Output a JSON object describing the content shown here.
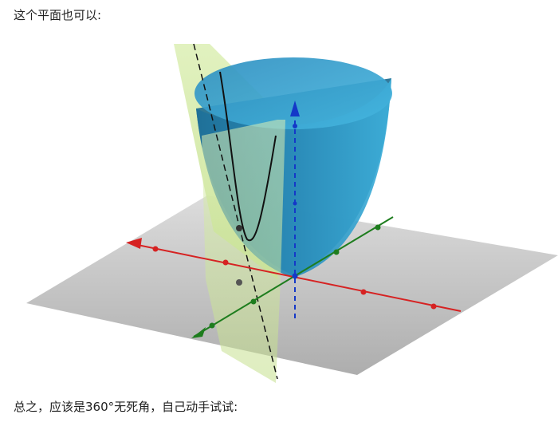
{
  "paragraphs": {
    "intro": "这个平面也可以:",
    "conclusion": "总之，应该是360°无死角，自己动手试试:"
  },
  "figure": {
    "colors": {
      "paraboloid": "#2e95c3",
      "paraboloid_inner": "#1e6f96",
      "plane": "#cfe6a0",
      "floor": "#bdbdbd",
      "x_axis": "#d62222",
      "y_axis": "#1e7d1e",
      "z_axis": "#1438c8"
    }
  }
}
